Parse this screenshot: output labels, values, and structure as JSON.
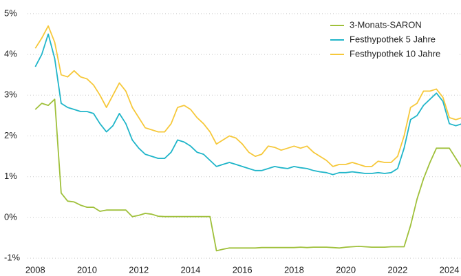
{
  "chart_data": {
    "type": "line",
    "x": [
      2008,
      2008.25,
      2008.5,
      2008.75,
      2009,
      2009.25,
      2009.5,
      2009.75,
      2010,
      2010.25,
      2010.5,
      2010.75,
      2011,
      2011.25,
      2011.5,
      2011.75,
      2012,
      2012.25,
      2012.5,
      2012.75,
      2013,
      2013.25,
      2013.5,
      2013.75,
      2014,
      2014.25,
      2014.5,
      2014.75,
      2015,
      2015.25,
      2015.5,
      2015.75,
      2016,
      2016.25,
      2016.5,
      2016.75,
      2017,
      2017.25,
      2017.5,
      2017.75,
      2018,
      2018.25,
      2018.5,
      2018.75,
      2019,
      2019.25,
      2019.5,
      2019.75,
      2020,
      2020.25,
      2020.5,
      2020.75,
      2021,
      2021.25,
      2021.5,
      2021.75,
      2022,
      2022.25,
      2022.5,
      2022.75,
      2023,
      2023.25,
      2023.5,
      2023.75,
      2024,
      2024.25,
      2024.5
    ],
    "series": [
      {
        "name": "3-Monats-SARON",
        "color": "#9fc03a",
        "values": [
          2.65,
          2.8,
          2.75,
          2.9,
          0.6,
          0.4,
          0.38,
          0.3,
          0.25,
          0.25,
          0.15,
          0.18,
          0.18,
          0.18,
          0.18,
          0.02,
          0.05,
          0.1,
          0.08,
          0.03,
          0.02,
          0.02,
          0.02,
          0.02,
          0.02,
          0.02,
          0.02,
          0.02,
          -0.82,
          -0.78,
          -0.75,
          -0.75,
          -0.75,
          -0.75,
          -0.75,
          -0.74,
          -0.74,
          -0.74,
          -0.74,
          -0.74,
          -0.74,
          -0.73,
          -0.74,
          -0.73,
          -0.73,
          -0.73,
          -0.74,
          -0.75,
          -0.73,
          -0.72,
          -0.71,
          -0.72,
          -0.73,
          -0.73,
          -0.73,
          -0.72,
          -0.72,
          -0.72,
          -0.2,
          0.45,
          0.95,
          1.35,
          1.7,
          1.7,
          1.7,
          1.45,
          1.2
        ]
      },
      {
        "name": "Festhypothek 5 Jahre",
        "color": "#1fb5c9",
        "values": [
          3.7,
          4.0,
          4.5,
          3.9,
          2.8,
          2.7,
          2.65,
          2.6,
          2.6,
          2.55,
          2.3,
          2.1,
          2.25,
          2.55,
          2.3,
          1.9,
          1.7,
          1.55,
          1.5,
          1.45,
          1.45,
          1.6,
          1.9,
          1.85,
          1.75,
          1.6,
          1.55,
          1.4,
          1.25,
          1.3,
          1.35,
          1.3,
          1.25,
          1.2,
          1.15,
          1.15,
          1.2,
          1.25,
          1.22,
          1.2,
          1.25,
          1.22,
          1.2,
          1.15,
          1.12,
          1.1,
          1.05,
          1.1,
          1.1,
          1.12,
          1.1,
          1.08,
          1.08,
          1.1,
          1.08,
          1.1,
          1.2,
          1.7,
          2.4,
          2.5,
          2.75,
          2.9,
          3.05,
          2.85,
          2.3,
          2.25,
          2.3
        ]
      },
      {
        "name": "Festhypothek 10 Jahre",
        "color": "#f6c83a",
        "values": [
          4.15,
          4.4,
          4.7,
          4.3,
          3.5,
          3.45,
          3.6,
          3.45,
          3.4,
          3.25,
          3.0,
          2.7,
          3.0,
          3.3,
          3.1,
          2.7,
          2.45,
          2.2,
          2.15,
          2.1,
          2.1,
          2.3,
          2.7,
          2.75,
          2.65,
          2.45,
          2.3,
          2.1,
          1.8,
          1.9,
          2.0,
          1.95,
          1.8,
          1.6,
          1.5,
          1.55,
          1.75,
          1.72,
          1.65,
          1.7,
          1.75,
          1.7,
          1.75,
          1.6,
          1.5,
          1.4,
          1.25,
          1.3,
          1.3,
          1.35,
          1.3,
          1.25,
          1.25,
          1.38,
          1.35,
          1.35,
          1.5,
          2.0,
          2.7,
          2.8,
          3.1,
          3.1,
          3.15,
          2.95,
          2.45,
          2.4,
          2.45
        ]
      }
    ],
    "xlim": [
      2007.7,
      2024.45
    ],
    "xticks": [
      2008,
      2010,
      2012,
      2014,
      2016,
      2018,
      2020,
      2022,
      2024
    ],
    "ylim": [
      -1.1,
      5.1
    ],
    "yticks": [
      {
        "value": -1,
        "label": "-1%"
      },
      {
        "value": 0,
        "label": "0%"
      },
      {
        "value": 1,
        "label": "1%"
      },
      {
        "value": 2,
        "label": "2%"
      },
      {
        "value": 3,
        "label": "3%"
      },
      {
        "value": 4,
        "label": "4%"
      },
      {
        "value": 5,
        "label": "5%"
      }
    ],
    "grid": true,
    "legend": "top-right"
  }
}
